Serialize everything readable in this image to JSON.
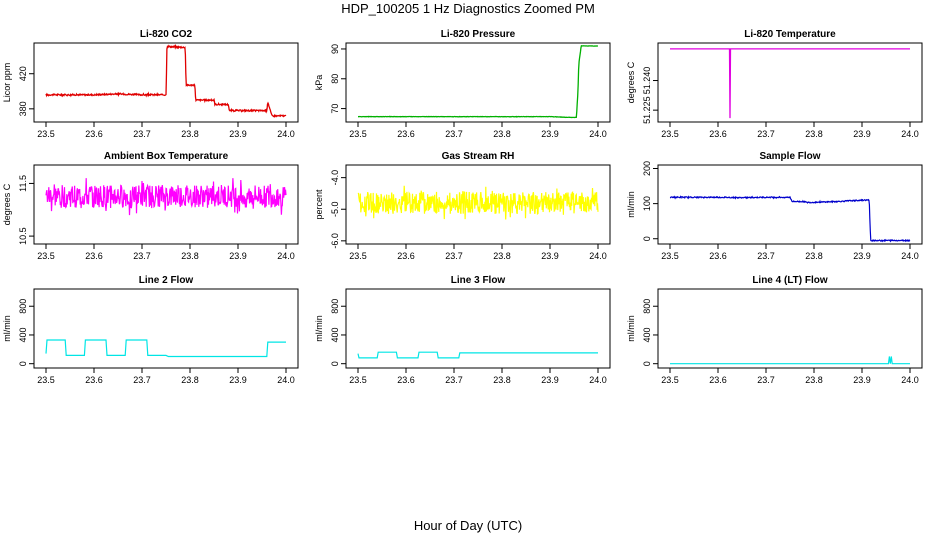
{
  "figure": {
    "title": "HDP_100205  1 Hz Diagnostics Zoomed PM",
    "xlabel": "Hour of Day (UTC)"
  },
  "chart_data": [
    {
      "type": "line",
      "title": "Li-820 CO2",
      "ylabel": "Licor ppm",
      "color": "#e00000",
      "xlim": [
        23.5,
        24.0
      ],
      "ylim": [
        365,
        455
      ],
      "xticks": [
        "23.5",
        "23.6",
        "23.7",
        "23.8",
        "23.9",
        "24.0"
      ],
      "yticks": [
        {
          "v": 380,
          "label": "380"
        },
        {
          "v": 420,
          "label": "420"
        }
      ],
      "x": [
        23.5,
        23.6,
        23.65,
        23.7,
        23.75,
        23.752,
        23.79,
        23.792,
        23.81,
        23.812,
        23.85,
        23.852,
        23.88,
        23.882,
        23.96,
        23.962,
        23.97,
        23.972,
        24.0
      ],
      "y": [
        396,
        396,
        397,
        396,
        396,
        451,
        450,
        407,
        407,
        390,
        390,
        385,
        385,
        378,
        378,
        388,
        373,
        372,
        372
      ],
      "noise": 0.8
    },
    {
      "type": "line",
      "title": "Li-820 Pressure",
      "ylabel": "kPa",
      "color": "#00b000",
      "xlim": [
        23.5,
        24.0
      ],
      "ylim": [
        65.5,
        92
      ],
      "xticks": [
        "23.5",
        "23.6",
        "23.7",
        "23.8",
        "23.9",
        "24.0"
      ],
      "yticks": [
        {
          "v": 70,
          "label": "70"
        },
        {
          "v": 80,
          "label": "80"
        },
        {
          "v": 90,
          "label": "90"
        }
      ],
      "x": [
        23.5,
        23.7,
        23.9,
        23.95,
        23.955,
        23.958,
        23.96,
        23.965,
        24.0
      ],
      "y": [
        67.3,
        67.3,
        67.3,
        67.0,
        67.1,
        75,
        85,
        91,
        91
      ],
      "noise": 0.05
    },
    {
      "type": "line",
      "title": "Li-820 Temperature",
      "ylabel": "degrees C",
      "color": "#e000e0",
      "xlim": [
        23.5,
        24.0
      ],
      "ylim": [
        51.219,
        51.259
      ],
      "xticks": [
        "23.5",
        "23.6",
        "23.7",
        "23.8",
        "23.9",
        "24.0"
      ],
      "yticks": [
        {
          "v": 51.225,
          "label": "51.225"
        },
        {
          "v": 51.24,
          "label": "51.240"
        }
      ],
      "x": [
        23.5,
        23.624,
        23.625,
        23.626,
        24.0
      ],
      "y": [
        51.256,
        51.256,
        51.221,
        51.256,
        51.256
      ],
      "noise": 0
    },
    {
      "type": "line",
      "title": "Ambient Box Temperature",
      "ylabel": "degrees C",
      "color": "#ff00ff",
      "xlim": [
        23.5,
        24.0
      ],
      "ylim": [
        10.35,
        11.85
      ],
      "xticks": [
        "23.5",
        "23.6",
        "23.7",
        "23.8",
        "23.9",
        "24.0"
      ],
      "yticks": [
        {
          "v": 10.5,
          "label": "10.5"
        },
        {
          "v": 11.5,
          "label": "11.5"
        }
      ],
      "x": [
        23.5,
        24.0
      ],
      "y": [
        11.25,
        11.25
      ],
      "noise": 0.22
    },
    {
      "type": "line",
      "title": "Gas Stream RH",
      "ylabel": "percent",
      "color": "#ffff00",
      "xlim": [
        23.5,
        24.0
      ],
      "ylim": [
        -6.1,
        -3.6
      ],
      "xticks": [
        "23.5",
        "23.6",
        "23.7",
        "23.8",
        "23.9",
        "24.0"
      ],
      "yticks": [
        {
          "v": -6.0,
          "label": "-6.0"
        },
        {
          "v": -5.0,
          "label": "-5.0"
        },
        {
          "v": -4.0,
          "label": "-4.0"
        }
      ],
      "x": [
        23.5,
        24.0
      ],
      "y": [
        -4.8,
        -4.8
      ],
      "noise": 0.35
    },
    {
      "type": "line",
      "title": "Sample Flow",
      "ylabel": "ml/min",
      "color": "#0000cc",
      "xlim": [
        23.5,
        24.0
      ],
      "ylim": [
        -15,
        210
      ],
      "xticks": [
        "23.5",
        "23.6",
        "23.7",
        "23.8",
        "23.9",
        "24.0"
      ],
      "yticks": [
        {
          "v": 0,
          "label": "0"
        },
        {
          "v": 100,
          "label": "100"
        },
        {
          "v": 200,
          "label": "200"
        }
      ],
      "x": [
        23.5,
        23.6,
        23.65,
        23.7,
        23.75,
        23.755,
        23.78,
        23.785,
        23.85,
        23.9,
        23.915,
        23.918,
        24.0
      ],
      "y": [
        118,
        118,
        117,
        118,
        118,
        106,
        106,
        103,
        106,
        110,
        110,
        -5,
        -5
      ],
      "noise": 1.5
    },
    {
      "type": "line",
      "title": "Line 2 Flow",
      "ylabel": "ml/min",
      "color": "#00e5e5",
      "xlim": [
        23.5,
        24.0
      ],
      "ylim": [
        -60,
        1040
      ],
      "xticks": [
        "23.5",
        "23.6",
        "23.7",
        "23.8",
        "23.9",
        "24.0"
      ],
      "yticks": [
        {
          "v": 0,
          "label": "0"
        },
        {
          "v": 400,
          "label": "400"
        },
        {
          "v": 800,
          "label": "800"
        }
      ],
      "x": [
        23.5,
        23.502,
        23.54,
        23.542,
        23.58,
        23.582,
        23.625,
        23.627,
        23.665,
        23.667,
        23.71,
        23.712,
        23.75,
        23.755,
        23.96,
        23.962,
        24.0
      ],
      "y": [
        140,
        330,
        330,
        115,
        115,
        330,
        330,
        115,
        115,
        330,
        330,
        115,
        115,
        100,
        100,
        300,
        300
      ],
      "noise": 0
    },
    {
      "type": "line",
      "title": "Line 3 Flow",
      "ylabel": "ml/min",
      "color": "#00e5e5",
      "xlim": [
        23.5,
        24.0
      ],
      "ylim": [
        -60,
        1040
      ],
      "xticks": [
        "23.5",
        "23.6",
        "23.7",
        "23.8",
        "23.9",
        "24.0"
      ],
      "yticks": [
        {
          "v": 0,
          "label": "0"
        },
        {
          "v": 400,
          "label": "400"
        },
        {
          "v": 800,
          "label": "800"
        }
      ],
      "x": [
        23.5,
        23.502,
        23.54,
        23.542,
        23.58,
        23.582,
        23.625,
        23.627,
        23.665,
        23.667,
        23.71,
        23.712,
        24.0
      ],
      "y": [
        140,
        80,
        80,
        160,
        160,
        80,
        80,
        160,
        160,
        80,
        80,
        150,
        150
      ],
      "noise": 0
    },
    {
      "type": "line",
      "title": "Line 4 (LT) Flow",
      "ylabel": "ml/min",
      "color": "#00e5e5",
      "xlim": [
        23.5,
        24.0
      ],
      "ylim": [
        -60,
        1040
      ],
      "xticks": [
        "23.5",
        "23.6",
        "23.7",
        "23.8",
        "23.9",
        "24.0"
      ],
      "yticks": [
        {
          "v": 0,
          "label": "0"
        },
        {
          "v": 400,
          "label": "400"
        },
        {
          "v": 800,
          "label": "800"
        }
      ],
      "x": [
        23.5,
        23.955,
        23.957,
        23.959,
        23.961,
        23.963,
        24.0
      ],
      "y": [
        0,
        0,
        100,
        0,
        100,
        0,
        0
      ],
      "noise": 0
    }
  ]
}
